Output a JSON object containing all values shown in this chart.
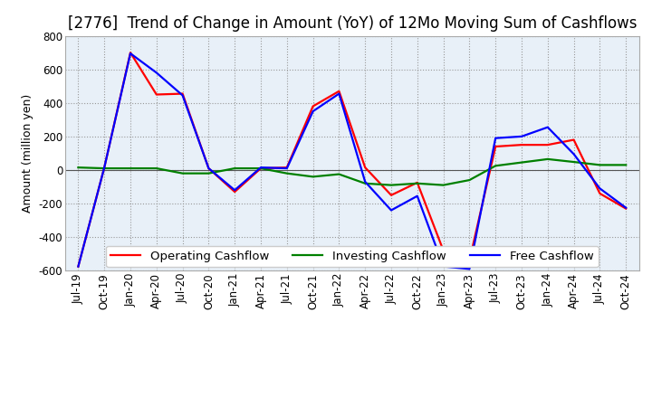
{
  "title": "[2776]  Trend of Change in Amount (YoY) of 12Mo Moving Sum of Cashflows",
  "ylabel": "Amount (million yen)",
  "ylim": [
    -600,
    800
  ],
  "yticks": [
    -600,
    -400,
    -200,
    0,
    200,
    400,
    600,
    800
  ],
  "x_labels": [
    "Jul-19",
    "Oct-19",
    "Jan-20",
    "Apr-20",
    "Jul-20",
    "Oct-20",
    "Jan-21",
    "Apr-21",
    "Jul-21",
    "Oct-21",
    "Jan-22",
    "Apr-22",
    "Jul-22",
    "Oct-22",
    "Jan-23",
    "Apr-23",
    "Jul-23",
    "Oct-23",
    "Jan-24",
    "Apr-24",
    "Jul-24",
    "Oct-24"
  ],
  "operating": [
    -575,
    15,
    700,
    450,
    455,
    10,
    -130,
    10,
    15,
    380,
    470,
    15,
    -150,
    -75,
    -480,
    -540,
    140,
    150,
    150,
    180,
    -140,
    -230
  ],
  "investing": [
    15,
    10,
    10,
    10,
    -20,
    -20,
    10,
    10,
    -20,
    -40,
    -25,
    -80,
    -90,
    -80,
    -90,
    -60,
    25,
    45,
    65,
    48,
    30,
    30
  ],
  "free": [
    -575,
    15,
    695,
    580,
    445,
    10,
    -120,
    15,
    10,
    350,
    455,
    -70,
    -240,
    -155,
    -575,
    -590,
    190,
    200,
    255,
    95,
    -110,
    -225
  ],
  "op_color": "#ff0000",
  "inv_color": "#008000",
  "free_color": "#0000ff",
  "bg_color": "#ffffff",
  "plot_bg_color": "#e8f0f8",
  "line_width": 1.6,
  "title_fontsize": 12,
  "label_fontsize": 9,
  "tick_fontsize": 8.5,
  "legend_fontsize": 9.5
}
